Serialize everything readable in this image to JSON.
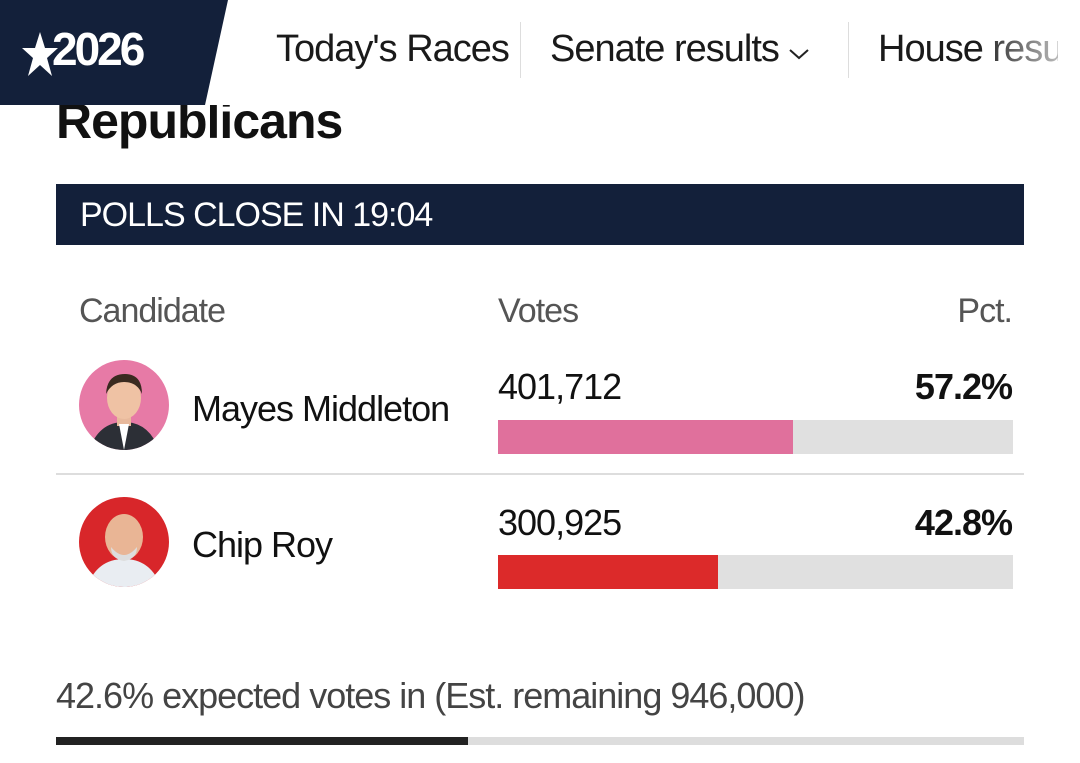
{
  "header": {
    "logo": "2026",
    "nav": [
      "Today's Races",
      "Senate results",
      "House resu"
    ]
  },
  "title": "Republicans",
  "banner": "POLLS CLOSE IN 19:04",
  "table": {
    "columns": [
      "Candidate",
      "Votes",
      "Pct."
    ],
    "rows": [
      {
        "name": "Mayes Middleton",
        "votes": "401,712",
        "pct": {
          "value": 57.2,
          "label": "57.2%"
        },
        "color": "#e0709c"
      },
      {
        "name": "Chip Roy",
        "votes": "300,925",
        "pct": {
          "value": 42.8,
          "label": "42.8%"
        },
        "color": "#dc2a2a"
      }
    ]
  },
  "footer": {
    "expected": {
      "value": 42.6,
      "label": "42.6%"
    },
    "text": " expected votes in (Est. remaining 946,000)"
  }
}
